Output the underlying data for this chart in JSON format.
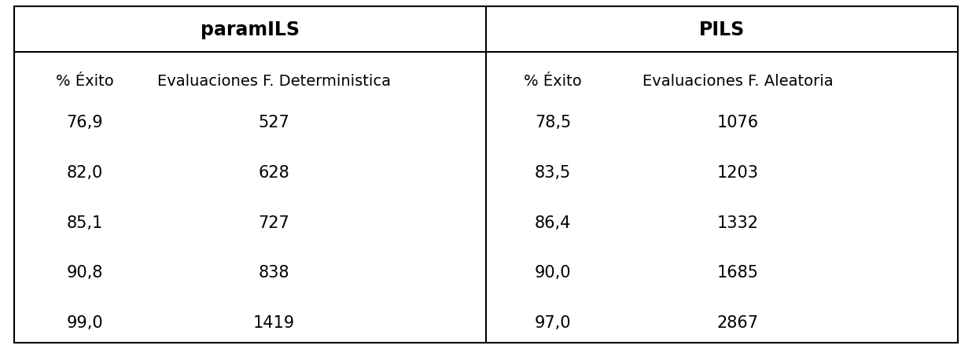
{
  "title_left": "paramILS",
  "title_right": "PILS",
  "header_left": [
    "% Éxito",
    "Evaluaciones F. Deterministica"
  ],
  "header_right": [
    "% Éxito",
    "Evaluaciones F. Aleatoria"
  ],
  "rows_left": [
    [
      "76,9",
      "527"
    ],
    [
      "82,0",
      "628"
    ],
    [
      "85,1",
      "727"
    ],
    [
      "90,8",
      "838"
    ],
    [
      "99,0",
      "1419"
    ]
  ],
  "rows_right": [
    [
      "78,5",
      "1076"
    ],
    [
      "83,5",
      "1203"
    ],
    [
      "86,4",
      "1332"
    ],
    [
      "90,0",
      "1685"
    ],
    [
      "97,0",
      "2867"
    ]
  ],
  "bg_color": "#ffffff",
  "text_color": "#000000",
  "border_color": "#000000",
  "title_fontsize": 17,
  "header_fontsize": 14,
  "data_fontsize": 15,
  "figsize": [
    12.36,
    4.44
  ],
  "dpi": 100
}
